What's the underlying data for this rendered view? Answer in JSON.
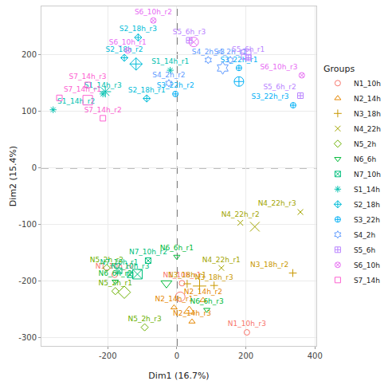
{
  "chart_data": {
    "type": "scatter",
    "xlabel": "Dim1 (16.7%)",
    "ylabel": "Dim2 (15.4%)",
    "legend_title": "Groups",
    "legend": "right",
    "grid": true,
    "xlim": [
      -392,
      404
    ],
    "ylim": [
      -315,
      286
    ],
    "xticks": [
      -200,
      0,
      200,
      400
    ],
    "yticks": [
      -300,
      -200,
      -100,
      0,
      100,
      200
    ],
    "hline": 0,
    "vline": 0,
    "series": [
      {
        "name": "N1_10h",
        "color": "#F8766D",
        "marker": "circle-open",
        "labels": [
          "N1_10h_r1",
          "N1_10h_r2",
          "N1_10h_r3"
        ],
        "x": [
          15,
          -180,
          203
        ],
        "y": [
          -204,
          -189,
          -291
        ],
        "mean": [
          10,
          -228
        ]
      },
      {
        "name": "N2_14h",
        "color": "#E58700",
        "marker": "triangle-up-open",
        "labels": [
          "N2_14h_r1",
          "N2_14h_r2",
          "N2_14h_r3"
        ],
        "x": [
          -8,
          76,
          44
        ],
        "y": [
          -247,
          -234,
          -272
        ],
        "mean": [
          36,
          -253
        ]
      },
      {
        "name": "N3_18h",
        "color": "#C99800",
        "marker": "cross-thin-open",
        "labels": [
          "N3_18h_r1",
          "N3_18h_r2",
          "N3_18h_r3"
        ],
        "x": [
          30,
          336,
          108
        ],
        "y": [
          -205,
          -186,
          -208
        ],
        "mean": [
          66,
          -209
        ]
      },
      {
        "name": "N4_22h",
        "color": "#A3A500",
        "marker": "x-thin-open",
        "labels": [
          "N4_22h_r1",
          "N4_22h_r2",
          "N4_22h_r3"
        ],
        "x": [
          129,
          184,
          358
        ],
        "y": [
          -177,
          -97,
          -78
        ],
        "mean": [
          226,
          -104
        ]
      },
      {
        "name": "N5_2h",
        "color": "#6BB100",
        "marker": "diamond-open",
        "labels": [
          "N5_2h_r1",
          "N5_2h_r2",
          "N5_2h_r3"
        ],
        "x": [
          -178,
          -203,
          -93
        ],
        "y": [
          -218,
          -177,
          -282
        ],
        "mean": [
          -152,
          -220
        ]
      },
      {
        "name": "N6_6h",
        "color": "#00BA38",
        "marker": "triangle-down-open",
        "labels": [
          "N6_6h_r1",
          "N6_6h_r2",
          "N6_6h_r3"
        ],
        "x": [
          0,
          -178,
          87
        ],
        "y": [
          -157,
          -201,
          -251
        ],
        "mean": [
          -30,
          -204
        ]
      },
      {
        "name": "N7_10h",
        "color": "#00BF7D",
        "marker": "square-x-open",
        "labels": [
          "N7_10h_r1",
          "N7_10h_r2",
          "N7_10h_r3"
        ],
        "x": [
          -167,
          -83,
          -135
        ],
        "y": [
          -182,
          -164,
          -189
        ],
        "mean": [
          -114,
          -188
        ]
      },
      {
        "name": "S1_14h",
        "color": "#00C0AF",
        "marker": "asterisk-open",
        "labels": [
          "S1_14h_r1",
          "S1_14h_r2",
          "S1_14h_r3"
        ],
        "x": [
          -19,
          -358,
          -214
        ],
        "y": [
          173,
          103,
          131
        ],
        "mean": [
          -207,
          135
        ]
      },
      {
        "name": "S2_18h",
        "color": "#00BCD8",
        "marker": "diamond-cross-open",
        "labels": [
          "S2_18h_r1",
          "S2_18h_r2",
          "S2_18h_r3"
        ],
        "x": [
          -87,
          -152,
          -112
        ],
        "y": [
          123,
          195,
          231
        ],
        "mean": [
          -118,
          184
        ]
      },
      {
        "name": "S3_22h",
        "color": "#00B0F6",
        "marker": "circle-cross-open",
        "labels": [
          "S3_22h_r1",
          "S3_22h_r2",
          "S3_22h_r3"
        ],
        "x": [
          180,
          -4,
          337
        ],
        "y": [
          177,
          131,
          111
        ],
        "mean": [
          180,
          153
        ]
      },
      {
        "name": "S4_2h",
        "color": "#619CFF",
        "marker": "hexagram-open",
        "labels": [
          "S4_2h_r1",
          "S4_2h_r2",
          "S4_2h_r3"
        ],
        "x": [
          155,
          -23,
          91
        ],
        "y": [
          191,
          150,
          191
        ],
        "mean": [
          133,
          177
        ]
      },
      {
        "name": "S5_6h",
        "color": "#B983FF",
        "marker": "square-cross-open",
        "labels": [
          "S5_6h_r1",
          "S5_6h_r2",
          "S5_6h_r3"
        ],
        "x": [
          207,
          358,
          36
        ],
        "y": [
          195,
          128,
          226
        ],
        "mean": [
          201,
          201
        ]
      },
      {
        "name": "S6_10h",
        "color": "#E76BF3",
        "marker": "circle-x-open",
        "labels": [
          "S6_10h_r1",
          "S6_10h_r2",
          "S6_10h_r3"
        ],
        "x": [
          -142,
          -68,
          362
        ],
        "y": [
          208,
          261,
          164
        ],
        "mean": [
          49,
          223
        ]
      },
      {
        "name": "S7_14h",
        "color": "#FD61D1",
        "marker": "square-open",
        "labels": [
          "S7_14h_r1",
          "S7_14h_r2",
          "S7_14h_r3"
        ],
        "x": [
          -340,
          -214,
          -258
        ],
        "y": [
          124,
          88,
          147
        ],
        "mean": [
          -258,
          120
        ]
      }
    ]
  }
}
